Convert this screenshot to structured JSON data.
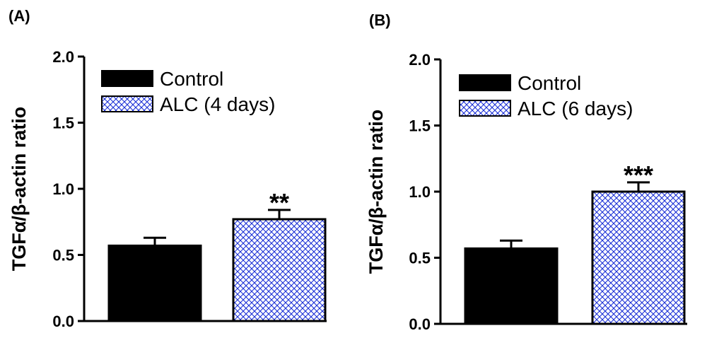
{
  "chart_data": [
    {
      "type": "bar",
      "panel_label": "(A)",
      "ylabel": "TGFα/β-actin ratio",
      "ylim": [
        0,
        2.0
      ],
      "yticks": [
        "0.0",
        "0.5",
        "1.0",
        "1.5",
        "2.0"
      ],
      "ytick_values": [
        0.0,
        0.5,
        1.0,
        1.5,
        2.0
      ],
      "legend_position": "top-left",
      "series": [
        {
          "name": "Control",
          "value": 0.57,
          "error": 0.06,
          "pattern": "solid",
          "color": "#000000",
          "significance": ""
        },
        {
          "name": "ALC (4 days)",
          "value": 0.77,
          "error": 0.07,
          "pattern": "crosshatch",
          "color": "#1a2fd6",
          "significance": "**"
        }
      ]
    },
    {
      "type": "bar",
      "panel_label": "(B)",
      "ylabel": "TGFα/β-actin ratio",
      "ylim": [
        0,
        2.0
      ],
      "yticks": [
        "0.0",
        "0.5",
        "1.0",
        "1.5",
        "2.0"
      ],
      "ytick_values": [
        0.0,
        0.5,
        1.0,
        1.5,
        2.0
      ],
      "legend_position": "top-left",
      "series": [
        {
          "name": "Control",
          "value": 0.57,
          "error": 0.06,
          "pattern": "solid",
          "color": "#000000",
          "significance": ""
        },
        {
          "name": "ALC (6 days)",
          "value": 1.0,
          "error": 0.07,
          "pattern": "crosshatch",
          "color": "#1a2fd6",
          "significance": "***"
        }
      ]
    }
  ]
}
